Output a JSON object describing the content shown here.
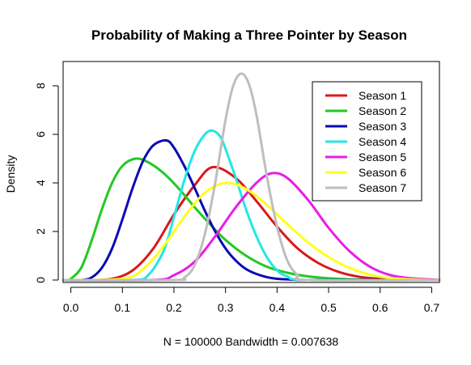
{
  "chart_data": {
    "type": "line",
    "title": "Probability of Making a Three Pointer by Season",
    "xlabel": "N = 100000   Bandwidth = 0.007638",
    "ylabel": "Density",
    "xlim": [
      -0.015,
      0.715
    ],
    "ylim": [
      -0.1,
      9.0
    ],
    "xticks": [
      0.0,
      0.1,
      0.2,
      0.3,
      0.4,
      0.5,
      0.6,
      0.7
    ],
    "xtick_labels": [
      "0.0",
      "0.1",
      "0.2",
      "0.3",
      "0.4",
      "0.5",
      "0.6",
      "0.7"
    ],
    "yticks": [
      0,
      2,
      4,
      6,
      8
    ],
    "ytick_labels": [
      "0",
      "2",
      "4",
      "6",
      "8"
    ],
    "grid": false,
    "legend_position": "top-right",
    "series": [
      {
        "name": "Season 1",
        "color": "#d7191c",
        "x": [
          0.0,
          0.04,
          0.08,
          0.12,
          0.16,
          0.2,
          0.24,
          0.275,
          0.32,
          0.36,
          0.4,
          0.44,
          0.48,
          0.52,
          0.56,
          0.6,
          0.64,
          0.7
        ],
        "values": [
          0.0,
          0.0,
          0.05,
          0.4,
          1.3,
          2.7,
          3.9,
          4.65,
          4.2,
          3.25,
          2.2,
          1.3,
          0.7,
          0.33,
          0.13,
          0.05,
          0.01,
          0.0
        ]
      },
      {
        "name": "Season 2",
        "color": "#22c922",
        "x": [
          -0.005,
          0.0,
          0.02,
          0.04,
          0.06,
          0.08,
          0.1,
          0.125,
          0.15,
          0.18,
          0.21,
          0.24,
          0.27,
          0.3,
          0.34,
          0.38,
          0.42,
          0.46,
          0.5,
          0.55,
          0.6
        ],
        "values": [
          0.0,
          0.05,
          0.5,
          1.6,
          2.9,
          4.0,
          4.7,
          5.0,
          4.85,
          4.4,
          3.75,
          3.0,
          2.3,
          1.65,
          1.0,
          0.55,
          0.3,
          0.15,
          0.07,
          0.02,
          0.0
        ]
      },
      {
        "name": "Season 3",
        "color": "#0a0ab4",
        "x": [
          0.02,
          0.04,
          0.06,
          0.08,
          0.1,
          0.12,
          0.14,
          0.16,
          0.185,
          0.2,
          0.22,
          0.24,
          0.26,
          0.28,
          0.3,
          0.32,
          0.34,
          0.36,
          0.38,
          0.4,
          0.44,
          0.48
        ],
        "values": [
          0.0,
          0.1,
          0.5,
          1.3,
          2.5,
          3.8,
          4.9,
          5.55,
          5.75,
          5.45,
          4.7,
          3.8,
          2.85,
          2.0,
          1.3,
          0.8,
          0.45,
          0.25,
          0.12,
          0.05,
          0.01,
          0.0
        ]
      },
      {
        "name": "Season 4",
        "color": "#24e6e6",
        "x": [
          0.12,
          0.15,
          0.18,
          0.2,
          0.22,
          0.24,
          0.26,
          0.275,
          0.29,
          0.3,
          0.32,
          0.34,
          0.36,
          0.38,
          0.4,
          0.42,
          0.46
        ],
        "values": [
          0.0,
          0.2,
          1.2,
          2.6,
          4.1,
          5.3,
          6.0,
          6.15,
          5.9,
          5.4,
          4.2,
          2.9,
          1.8,
          0.95,
          0.4,
          0.15,
          0.0
        ]
      },
      {
        "name": "Season 5",
        "color": "#e61ee6",
        "x": [
          0.16,
          0.2,
          0.24,
          0.28,
          0.32,
          0.36,
          0.39,
          0.42,
          0.46,
          0.5,
          0.54,
          0.58,
          0.62,
          0.66,
          0.7
        ],
        "values": [
          0.0,
          0.2,
          0.75,
          1.8,
          3.0,
          4.0,
          4.4,
          4.2,
          3.3,
          2.15,
          1.2,
          0.55,
          0.2,
          0.07,
          0.02
        ]
      },
      {
        "name": "Season 6",
        "color": "#ffff1e",
        "x": [
          0.1,
          0.14,
          0.18,
          0.22,
          0.26,
          0.3,
          0.34,
          0.38,
          0.42,
          0.46,
          0.5,
          0.54,
          0.58,
          0.62,
          0.66,
          0.7
        ],
        "values": [
          0.05,
          0.45,
          1.4,
          2.6,
          3.6,
          4.0,
          3.75,
          3.1,
          2.3,
          1.55,
          0.95,
          0.5,
          0.22,
          0.08,
          0.03,
          0.0
        ]
      },
      {
        "name": "Season 7",
        "color": "#bebebe",
        "x": [
          0.2,
          0.22,
          0.24,
          0.26,
          0.28,
          0.3,
          0.315,
          0.33,
          0.345,
          0.36,
          0.38,
          0.4,
          0.42,
          0.44,
          0.46
        ],
        "values": [
          0.0,
          0.1,
          0.6,
          1.9,
          4.0,
          6.6,
          8.0,
          8.5,
          8.1,
          6.8,
          4.3,
          2.2,
          0.8,
          0.2,
          0.0
        ]
      }
    ]
  }
}
